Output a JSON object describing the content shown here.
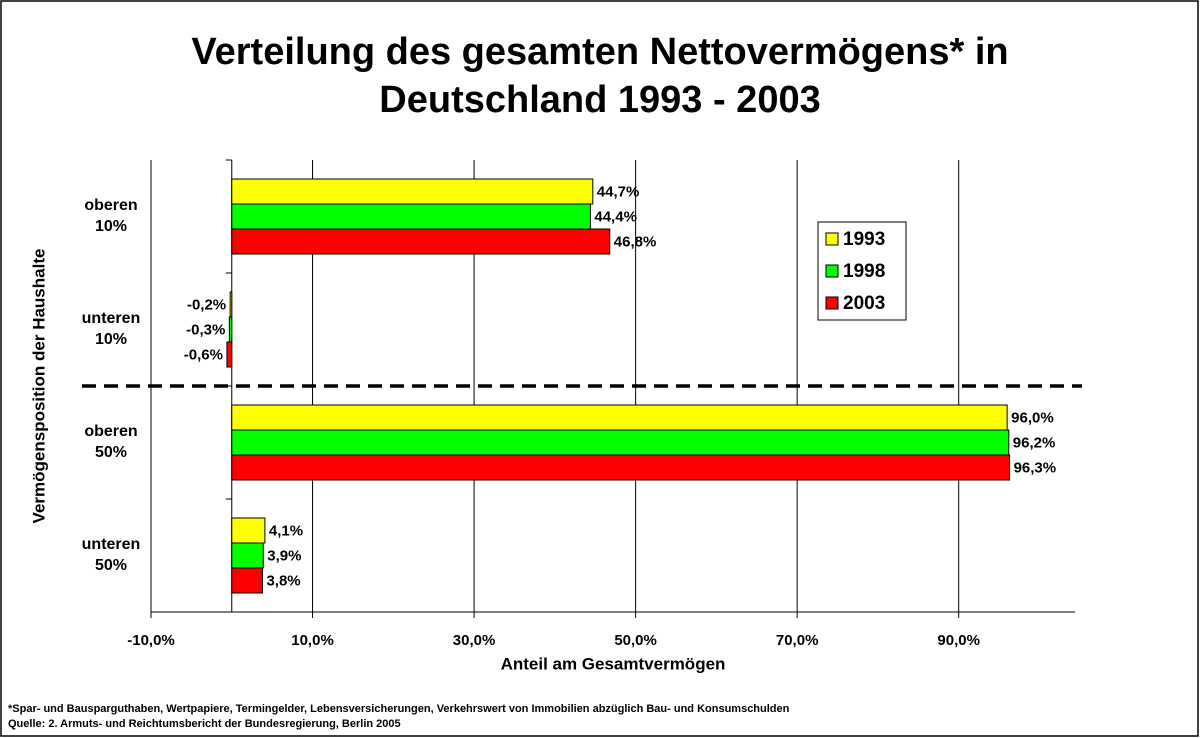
{
  "chart_data": {
    "type": "bar",
    "orientation": "horizontal",
    "title": "Verteilung des gesamten Nettovermögens* in Deutschland 1993 - 2003",
    "x_label": "Anteil am Gesamtvermögen",
    "y_label": "Vermögensposition der Haushalte",
    "categories": [
      "oberen 10%",
      "unteren 10%",
      "oberen 50%",
      "unteren 50%"
    ],
    "series": [
      {
        "name": "1993",
        "color": "#ffff00",
        "values": [
          44.7,
          -0.2,
          96.0,
          4.1
        ],
        "value_labels": [
          "44,7%",
          "-0,2%",
          "96,0%",
          "4,1%"
        ]
      },
      {
        "name": "1998",
        "color": "#00ff00",
        "values": [
          44.4,
          -0.3,
          96.2,
          3.9
        ],
        "value_labels": [
          "44,4%",
          "-0,3%",
          "96,2%",
          "3,9%"
        ]
      },
      {
        "name": "2003",
        "color": "#ff0000",
        "values": [
          46.8,
          -0.6,
          96.3,
          3.8
        ],
        "value_labels": [
          "46,8%",
          "-0,6%",
          "96,3%",
          "3,8%"
        ]
      }
    ],
    "xlim": [
      -10,
      104.4
    ],
    "xticks": [
      {
        "value": -10,
        "label": "-10,0%"
      },
      {
        "value": 10,
        "label": "10,0%"
      },
      {
        "value": 30,
        "label": "30,0%"
      },
      {
        "value": 50,
        "label": "50,0%"
      },
      {
        "value": 70,
        "label": "70,0%"
      },
      {
        "value": 90,
        "label": "90,0%"
      }
    ],
    "grid": true,
    "legend": "right",
    "footnotes": [
      "*Spar- und Bausparguthaben, Wertpapiere, Termingelder, Lebensversicherungen, Verkehrswert von Immobilien abzüglich Bau- und Konsumschulden",
      "Quelle: 2. Armuts- und Reichtumsbericht der Bundesregierung, Berlin 2005"
    ]
  }
}
